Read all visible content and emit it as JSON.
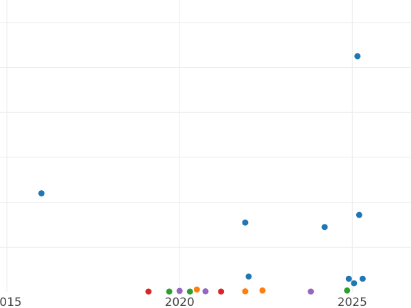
{
  "chart_data": {
    "type": "scatter",
    "title": "",
    "xlabel": "",
    "ylabel": "",
    "grid": true,
    "legend": "none",
    "xlim": [
      2014.8,
      2026.7
    ],
    "ylim": [
      0,
      6.5
    ],
    "x_ticks": [
      {
        "value": 2015,
        "label": "2015"
      },
      {
        "value": 2020,
        "label": "2020"
      },
      {
        "value": 2025,
        "label": "2025"
      }
    ],
    "y_gridlines": [
      1,
      2,
      3,
      4,
      5,
      6
    ],
    "series": [
      {
        "color": "#1f77b4",
        "points": [
          {
            "x": 2016.0,
            "y": 2.2
          },
          {
            "x": 2021.9,
            "y": 1.55
          },
          {
            "x": 2022.0,
            "y": 0.35
          },
          {
            "x": 2024.2,
            "y": 1.45
          },
          {
            "x": 2024.9,
            "y": 0.3
          },
          {
            "x": 2025.05,
            "y": 0.2
          },
          {
            "x": 2025.15,
            "y": 5.25
          },
          {
            "x": 2025.2,
            "y": 1.72
          },
          {
            "x": 2025.3,
            "y": 0.3
          }
        ]
      },
      {
        "color": "#ff7f0e",
        "points": [
          {
            "x": 2020.5,
            "y": 0.06
          },
          {
            "x": 2021.9,
            "y": 0.02
          },
          {
            "x": 2022.4,
            "y": 0.04
          }
        ]
      },
      {
        "color": "#2ca02c",
        "points": [
          {
            "x": 2019.7,
            "y": 0.0
          },
          {
            "x": 2020.3,
            "y": 0.01
          },
          {
            "x": 2024.85,
            "y": 0.04
          }
        ]
      },
      {
        "color": "#d62728",
        "points": [
          {
            "x": 2019.1,
            "y": 0.01
          },
          {
            "x": 2021.2,
            "y": 0.0
          }
        ]
      },
      {
        "color": "#9467bd",
        "points": [
          {
            "x": 2020.0,
            "y": 0.03
          },
          {
            "x": 2020.75,
            "y": 0.02
          },
          {
            "x": 2023.8,
            "y": 0.0
          }
        ]
      }
    ]
  }
}
